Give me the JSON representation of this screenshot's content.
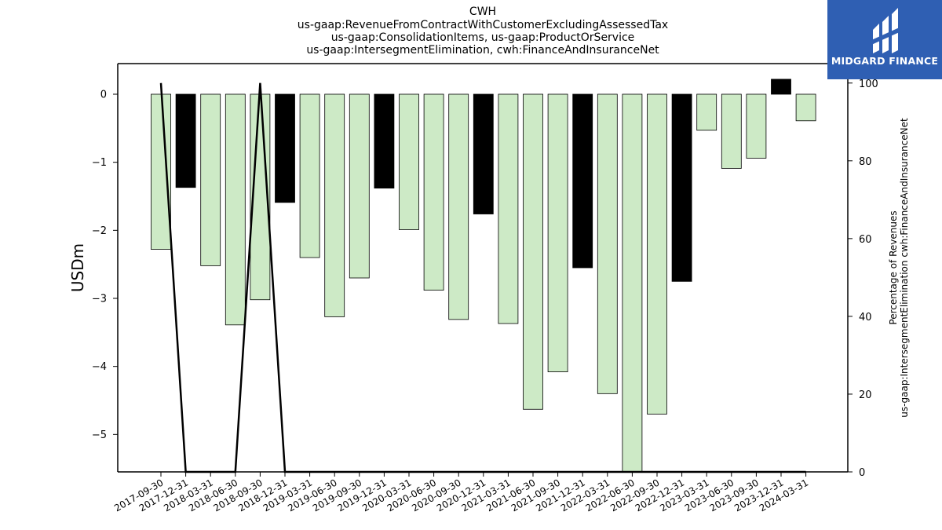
{
  "title_lines": [
    "CWH",
    "us-gaap:RevenueFromContractWithCustomerExcludingAssessedTax",
    "us-gaap:ConsolidationItems, us-gaap:ProductOrService",
    "us-gaap:IntersegmentElimination, cwh:FinanceAndInsuranceNet"
  ],
  "logo": {
    "text": "MIDGARD FINANCE",
    "background": "#2f5fb3",
    "icon": "midgard-logo-mark"
  },
  "chart_data": {
    "type": "bar",
    "categories": [
      "2017-09-30",
      "2017-12-31",
      "2018-03-31",
      "2018-06-30",
      "2018-09-30",
      "2018-12-31",
      "2019-03-31",
      "2019-06-30",
      "2019-09-30",
      "2019-12-31",
      "2020-03-31",
      "2020-06-30",
      "2020-09-30",
      "2020-12-31",
      "2021-03-31",
      "2021-06-30",
      "2021-09-30",
      "2021-12-31",
      "2022-03-31",
      "2022-06-30",
      "2022-09-30",
      "2022-12-31",
      "2023-03-31",
      "2023-06-30",
      "2023-09-30",
      "2023-12-31",
      "2024-03-31"
    ],
    "series": [
      {
        "type": "bar",
        "values": [
          -2.28,
          -1.37,
          -2.52,
          -3.39,
          -3.02,
          -1.59,
          -2.4,
          -3.27,
          -2.7,
          -1.38,
          -1.99,
          -2.88,
          -3.31,
          -1.76,
          -3.37,
          -4.63,
          -4.08,
          -2.55,
          -4.4,
          -5.55,
          -4.7,
          -2.75,
          -0.53,
          -1.09,
          -0.94,
          0.22,
          -0.39
        ],
        "colors": [
          "#cdeac6",
          "#000000",
          "#cdeac6",
          "#cdeac6",
          "#cdeac6",
          "#000000",
          "#cdeac6",
          "#cdeac6",
          "#cdeac6",
          "#000000",
          "#cdeac6",
          "#cdeac6",
          "#cdeac6",
          "#000000",
          "#cdeac6",
          "#cdeac6",
          "#cdeac6",
          "#000000",
          "#cdeac6",
          "#cdeac6",
          "#cdeac6",
          "#000000",
          "#cdeac6",
          "#cdeac6",
          "#cdeac6",
          "#000000",
          "#cdeac6"
        ],
        "axis": "left"
      },
      {
        "type": "line",
        "values": [
          100,
          0,
          0,
          0,
          100,
          0,
          0,
          0,
          0,
          0,
          0,
          0,
          0,
          0,
          0,
          0,
          0,
          0,
          0,
          0,
          0,
          0,
          0,
          0,
          0,
          0,
          0
        ],
        "color": "#000000",
        "axis": "right"
      }
    ],
    "ylabel": "USDm",
    "ylabel_right": "Percentage of Revenues\nus-gaap:IntersegmentElimination cwh:FinanceAndInsuranceNet",
    "ylim": [
      -5.55,
      0.45
    ],
    "ylim_right": [
      0,
      105
    ],
    "yticks": [
      0,
      -1,
      -2,
      -3,
      -4,
      -5
    ],
    "ytick_labels": [
      "0",
      "−1",
      "−2",
      "−3",
      "−4",
      "−5"
    ],
    "yticks_right": [
      0,
      20,
      40,
      60,
      80,
      100
    ],
    "ytick_labels_right": [
      "0",
      "20",
      "40",
      "60",
      "80",
      "100"
    ],
    "grid": false,
    "legend": "none"
  }
}
